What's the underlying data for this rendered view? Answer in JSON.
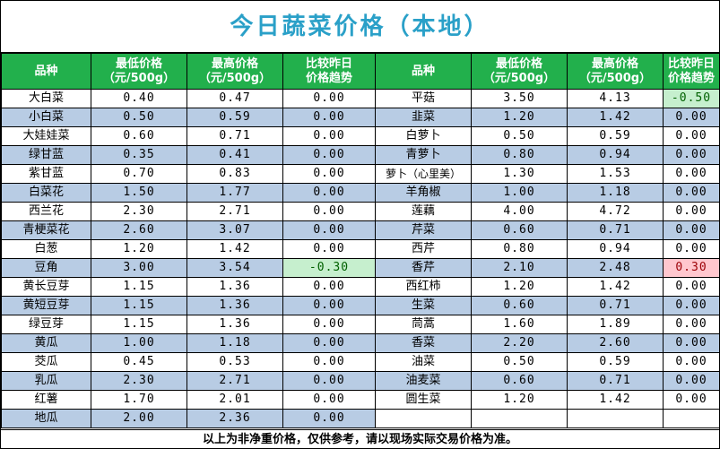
{
  "title": "今日蔬菜价格（本地）",
  "headers": {
    "name": "品种",
    "low": "最低价格\n（元/500g）",
    "high": "最高价格\n（元/500g）",
    "trend": "比较昨日\n价格趋势"
  },
  "colors": {
    "title_text": "#2aa0c8",
    "header_bg": "#22b04c",
    "row_shade": "#b8cce4",
    "down_bg": "#c6efce",
    "up_bg": "#ffc7ce"
  },
  "left_rows": [
    {
      "name": "大白菜",
      "low": "0.40",
      "high": "0.47",
      "trend": "0.00",
      "status": ""
    },
    {
      "name": "小白菜",
      "low": "0.50",
      "high": "0.59",
      "trend": "0.00",
      "status": ""
    },
    {
      "name": "大娃娃菜",
      "low": "0.60",
      "high": "0.71",
      "trend": "0.00",
      "status": ""
    },
    {
      "name": "绿甘蓝",
      "low": "0.35",
      "high": "0.41",
      "trend": "0.00",
      "status": ""
    },
    {
      "name": "紫甘蓝",
      "low": "0.70",
      "high": "0.83",
      "trend": "0.00",
      "status": ""
    },
    {
      "name": "白菜花",
      "low": "1.50",
      "high": "1.77",
      "trend": "0.00",
      "status": ""
    },
    {
      "name": "西兰花",
      "low": "2.30",
      "high": "2.71",
      "trend": "0.00",
      "status": ""
    },
    {
      "name": "青梗菜花",
      "low": "2.60",
      "high": "3.07",
      "trend": "0.00",
      "status": ""
    },
    {
      "name": "白葱",
      "low": "1.20",
      "high": "1.42",
      "trend": "0.00",
      "status": ""
    },
    {
      "name": "豆角",
      "low": "3.00",
      "high": "3.54",
      "trend": "-0.30",
      "status": "down"
    },
    {
      "name": "黄长豆芽",
      "low": "1.15",
      "high": "1.36",
      "trend": "0.00",
      "status": ""
    },
    {
      "name": "黄短豆芽",
      "low": "1.15",
      "high": "1.36",
      "trend": "0.00",
      "status": ""
    },
    {
      "name": "绿豆芽",
      "low": "1.15",
      "high": "1.36",
      "trend": "0.00",
      "status": ""
    },
    {
      "name": "黄瓜",
      "low": "1.00",
      "high": "1.18",
      "trend": "0.00",
      "status": ""
    },
    {
      "name": "茭瓜",
      "low": "0.45",
      "high": "0.53",
      "trend": "0.00",
      "status": ""
    },
    {
      "name": "乳瓜",
      "low": "2.30",
      "high": "2.71",
      "trend": "0.00",
      "status": ""
    },
    {
      "name": "红薯",
      "low": "1.70",
      "high": "2.01",
      "trend": "0.00",
      "status": ""
    },
    {
      "name": "地瓜",
      "low": "2.00",
      "high": "2.36",
      "trend": "0.00",
      "status": ""
    }
  ],
  "right_rows": [
    {
      "name": "平菇",
      "low": "3.50",
      "high": "4.13",
      "trend": "-0.50",
      "status": "down"
    },
    {
      "name": "韭菜",
      "low": "1.20",
      "high": "1.42",
      "trend": "0.00",
      "status": ""
    },
    {
      "name": "白萝卜",
      "low": "0.50",
      "high": "0.59",
      "trend": "0.00",
      "status": ""
    },
    {
      "name": "青萝卜",
      "low": "0.80",
      "high": "0.94",
      "trend": "0.00",
      "status": ""
    },
    {
      "name": "萝卜（心里美）",
      "low": "1.30",
      "high": "1.53",
      "trend": "0.00",
      "status": ""
    },
    {
      "name": "羊角椒",
      "low": "1.00",
      "high": "1.18",
      "trend": "0.00",
      "status": ""
    },
    {
      "name": "莲藕",
      "low": "4.00",
      "high": "4.72",
      "trend": "0.00",
      "status": ""
    },
    {
      "name": "芹菜",
      "low": "0.60",
      "high": "0.71",
      "trend": "0.00",
      "status": ""
    },
    {
      "name": "西芹",
      "low": "0.80",
      "high": "0.94",
      "trend": "0.00",
      "status": ""
    },
    {
      "name": "香芹",
      "low": "2.10",
      "high": "2.48",
      "trend": "0.30",
      "status": "up"
    },
    {
      "name": "西红柿",
      "low": "1.20",
      "high": "1.42",
      "trend": "0.00",
      "status": ""
    },
    {
      "name": "生菜",
      "low": "0.60",
      "high": "0.71",
      "trend": "0.00",
      "status": ""
    },
    {
      "name": "茼蒿",
      "low": "1.60",
      "high": "1.89",
      "trend": "0.00",
      "status": ""
    },
    {
      "name": "香菜",
      "low": "2.20",
      "high": "2.60",
      "trend": "0.00",
      "status": ""
    },
    {
      "name": "油菜",
      "low": "0.50",
      "high": "0.59",
      "trend": "0.00",
      "status": ""
    },
    {
      "name": "油麦菜",
      "low": "0.60",
      "high": "0.71",
      "trend": "0.00",
      "status": ""
    },
    {
      "name": "圆生菜",
      "low": "1.20",
      "high": "1.42",
      "trend": "0.00",
      "status": ""
    },
    {
      "name": "",
      "low": "",
      "high": "",
      "trend": "",
      "status": "blank"
    }
  ],
  "footer": "以上为非净重价格，仅供参考，请以现场实际交易价格为准。"
}
